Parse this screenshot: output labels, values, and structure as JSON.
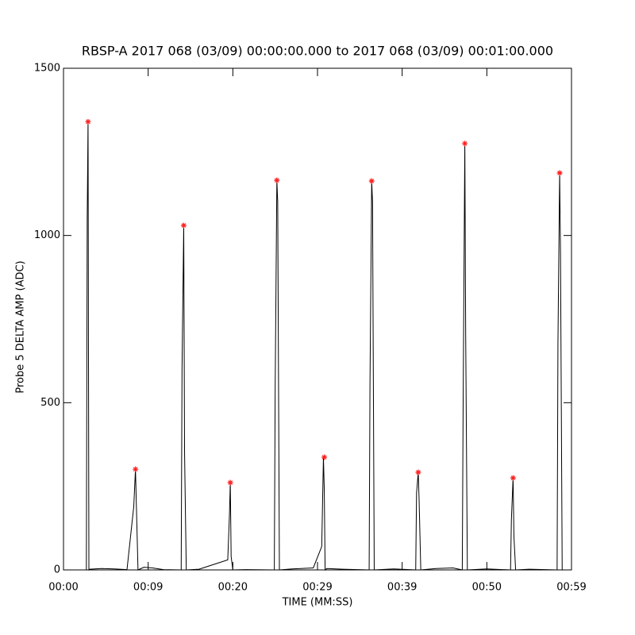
{
  "chart_data": {
    "type": "line",
    "title": "RBSP-A 2017 068 (03/09) 00:00:00.000 to 2017 068 (03/09) 00:01:00.000",
    "x_label": "TIME (MM:SS)",
    "y_label": "Probe 5 DELTA AMP (ADC)",
    "xlim": [
      0,
      60
    ],
    "ylim": [
      0,
      1500
    ],
    "xticks": [
      {
        "value": 0,
        "label": "00:00"
      },
      {
        "value": 10,
        "label": "00:09"
      },
      {
        "value": 20,
        "label": "00:20"
      },
      {
        "value": 30,
        "label": "00:29"
      },
      {
        "value": 40,
        "label": "00:39"
      },
      {
        "value": 50,
        "label": "00:50"
      },
      {
        "value": 60,
        "label": "00:59"
      }
    ],
    "yticks": [
      0,
      500,
      1000,
      1500
    ],
    "series": [
      {
        "style": "line",
        "color": "#000000",
        "x": [
          2.7,
          2.8,
          2.9,
          3.0,
          3.1,
          4.5,
          6.0,
          7.5,
          8.3,
          8.5,
          8.6,
          8.8,
          9.5,
          10.5,
          11.8,
          13.9,
          14.0,
          14.2,
          14.3,
          14.5,
          16.0,
          19.4,
          19.6,
          19.7,
          19.8,
          20.0,
          21.5,
          24.9,
          25.0,
          25.2,
          25.3,
          25.5,
          27.0,
          29.5,
          30.5,
          30.7,
          30.8,
          30.9,
          31.1,
          33.0,
          36.1,
          36.2,
          36.4,
          36.5,
          36.7,
          39.0,
          41.6,
          41.7,
          41.9,
          42.0,
          42.2,
          44.0,
          46.0,
          47.1,
          47.2,
          47.4,
          47.5,
          47.7,
          50.0,
          52.8,
          52.9,
          53.1,
          53.2,
          53.4,
          55.0,
          58.3,
          58.4,
          58.6,
          58.7,
          58.9
        ],
        "values": [
          0,
          1050,
          1340,
          0,
          2,
          4,
          3,
          1,
          190,
          301,
          200,
          0,
          8,
          6,
          1,
          0,
          600,
          1030,
          350,
          0,
          2,
          30,
          165,
          261,
          40,
          0,
          1,
          0,
          540,
          1165,
          1100,
          0,
          3,
          6,
          70,
          337,
          240,
          0,
          4,
          2,
          0,
          560,
          1163,
          1100,
          0,
          3,
          0,
          230,
          292,
          210,
          0,
          4,
          6,
          0,
          490,
          1275,
          710,
          0,
          3,
          0,
          150,
          275,
          100,
          0,
          2,
          0,
          680,
          1187,
          950,
          0
        ]
      },
      {
        "style": "markers",
        "color": "#ff2020",
        "x": [
          2.9,
          8.5,
          14.2,
          19.7,
          25.2,
          30.8,
          36.4,
          41.9,
          47.4,
          53.1,
          58.6
        ],
        "values": [
          1340,
          301,
          1030,
          261,
          1165,
          337,
          1163,
          292,
          1275,
          275,
          1187
        ]
      }
    ]
  }
}
